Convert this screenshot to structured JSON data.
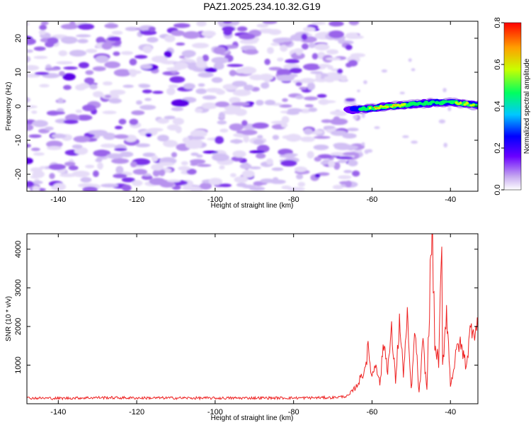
{
  "title": "PAZ1.2025.234.10.32.G19",
  "chart_data": [
    {
      "type": "heatmap",
      "xlabel": "Height of straight line (km)",
      "ylabel": "Frequency (Hz)",
      "xlim": [
        -148,
        -33
      ],
      "ylim": [
        -25,
        25
      ],
      "x_ticks": [
        -140,
        -120,
        -100,
        -80,
        -60,
        -40
      ],
      "y_ticks": [
        -20,
        -10,
        0,
        10,
        20
      ],
      "colorbar": {
        "label": "Normalized spectral amplitude",
        "range": [
          0.0,
          0.8
        ],
        "ticks": [
          0.0,
          0.2,
          0.4,
          0.6,
          0.8
        ]
      },
      "noise_region_x": [
        -148,
        -66
      ],
      "signal_band": {
        "x": [
          -66,
          -60,
          -55,
          -50,
          -45,
          -40,
          -35,
          -33
        ],
        "freq_hz": [
          -1.0,
          -0.6,
          0.0,
          0.6,
          1.0,
          1.2,
          0.6,
          0.0
        ],
        "peak_amplitude": [
          0.3,
          0.7,
          0.8,
          0.6,
          0.5,
          0.55,
          0.75,
          0.6
        ]
      }
    },
    {
      "type": "line",
      "xlabel": "Height of straight line (km)",
      "ylabel": "SNR (10 * v/v)",
      "xlim": [
        -148,
        -33
      ],
      "ylim": [
        0,
        4400
      ],
      "x_ticks": [
        -140,
        -120,
        -100,
        -80,
        -60,
        -40
      ],
      "y_ticks": [
        1000,
        2000,
        3000,
        4000
      ],
      "color": "#ee2222",
      "x": [
        -148,
        -140,
        -130,
        -120,
        -110,
        -100,
        -90,
        -80,
        -70,
        -66,
        -64,
        -62,
        -61,
        -60,
        -59,
        -58,
        -57,
        -56,
        -55,
        -54,
        -53,
        -52,
        -51,
        -50,
        -49,
        -48,
        -47,
        -46,
        -45,
        -44.6,
        -44,
        -43,
        -42.2,
        -42,
        -41,
        -40,
        -39,
        -38,
        -37,
        -36,
        -35,
        -34.5,
        -33.5,
        -33
      ],
      "y": [
        150,
        140,
        160,
        150,
        150,
        145,
        150,
        150,
        160,
        200,
        450,
        850,
        1400,
        700,
        1100,
        500,
        1600,
        900,
        1850,
        600,
        2100,
        800,
        2150,
        350,
        1900,
        250,
        1550,
        350,
        3800,
        4400,
        1500,
        1100,
        3850,
        900,
        2500,
        500,
        1000,
        1600,
        1400,
        1000,
        1800,
        2050,
        1900,
        1950
      ]
    }
  ]
}
